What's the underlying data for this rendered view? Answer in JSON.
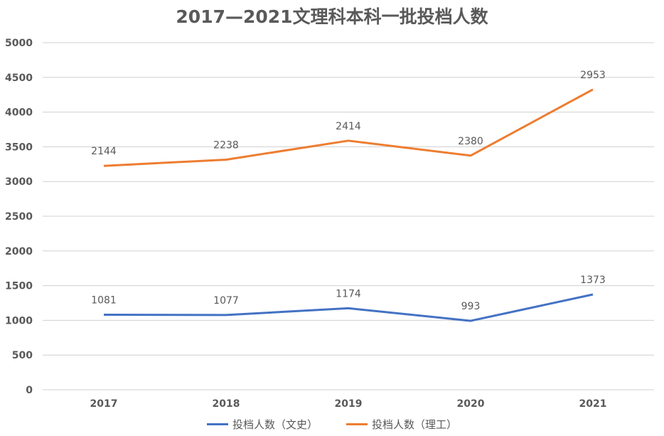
{
  "chart_data": {
    "type": "line",
    "stacked": true,
    "title": "2017—2021文理科本科一批投档人数",
    "categories": [
      "2017",
      "2018",
      "2019",
      "2020",
      "2021"
    ],
    "series": [
      {
        "name": "投档人数（文史）",
        "values": [
          1081,
          1077,
          1174,
          993,
          1373
        ],
        "color": "#4472C4"
      },
      {
        "name": "投档人数（理工）",
        "values": [
          2144,
          2238,
          2414,
          2380,
          2953
        ],
        "color": "#ED7D31"
      }
    ],
    "ylim": [
      0,
      5000
    ],
    "yticks": [
      0,
      500,
      1000,
      1500,
      2000,
      2500,
      3000,
      3500,
      4000,
      4500,
      5000
    ],
    "grid": true,
    "legend": "bottom"
  }
}
